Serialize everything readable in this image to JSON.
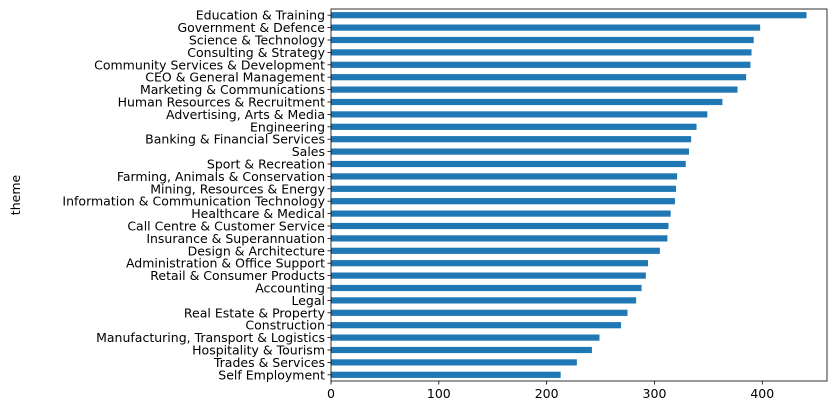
{
  "chart_data": {
    "type": "bar",
    "orientation": "horizontal",
    "title": "",
    "xlabel": "",
    "ylabel": "theme",
    "xlim": [
      0,
      460
    ],
    "xticks": [
      0,
      100,
      200,
      300,
      400
    ],
    "grid": false,
    "bar_color": "#1f77b4",
    "categories": [
      "Education & Training",
      "Government & Defence",
      "Science & Technology",
      "Consulting & Strategy",
      "Community Services & Development",
      "CEO & General Management",
      "Marketing & Communications",
      "Human Resources & Recruitment",
      "Advertising, Arts & Media",
      "Engineering",
      "Banking & Financial Services",
      "Sales",
      "Sport & Recreation",
      "Farming, Animals & Conservation",
      "Mining, Resources & Energy",
      "Information & Communication Technology",
      "Healthcare & Medical",
      "Call Centre & Customer Service",
      "Insurance & Superannuation",
      "Design & Architecture",
      "Administration & Office Support",
      "Retail & Consumer Products",
      "Accounting",
      "Legal",
      "Real Estate & Property",
      "Construction",
      "Manufacturing, Transport & Logistics",
      "Hospitality & Tourism",
      "Trades & Services",
      "Self Employment"
    ],
    "values": [
      441,
      398,
      392,
      390,
      389,
      385,
      377,
      363,
      349,
      339,
      334,
      332,
      329,
      321,
      320,
      319,
      315,
      313,
      312,
      305,
      294,
      292,
      288,
      283,
      275,
      269,
      249,
      242,
      228,
      213
    ]
  }
}
